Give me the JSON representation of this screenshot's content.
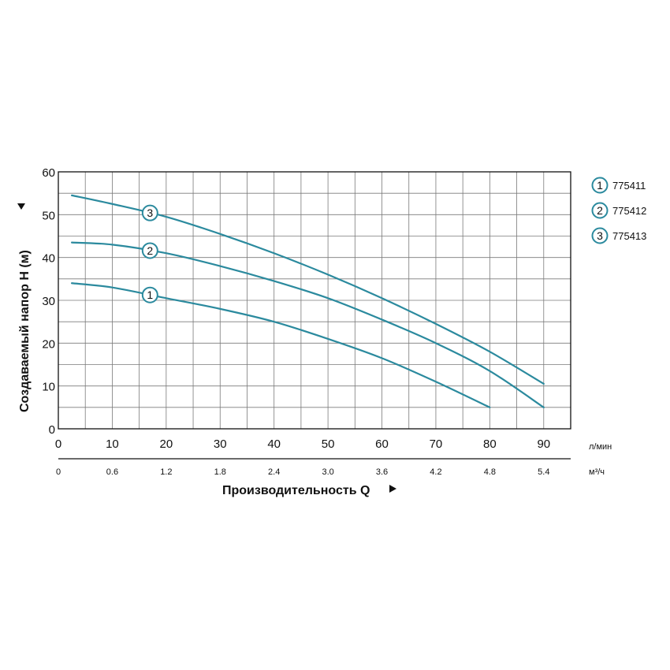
{
  "chart_data": {
    "type": "line",
    "xlabel": "Производительность Q",
    "ylabel": "Создаваемый напор H (м)",
    "x_unit": "л/мин",
    "x2_unit": "м³/ч",
    "xlim": [
      0,
      95
    ],
    "ylim": [
      0,
      60
    ],
    "x_ticks": [
      "0",
      "10",
      "20",
      "30",
      "40",
      "50",
      "60",
      "70",
      "80",
      "90"
    ],
    "x2_ticks": [
      "0",
      "0.6",
      "1.2",
      "1.8",
      "2.4",
      "3.0",
      "3.6",
      "4.2",
      "4.8",
      "5.4"
    ],
    "y_ticks": [
      "0",
      "10",
      "20",
      "30",
      "40",
      "50",
      "60"
    ],
    "grid": true,
    "legend_position": "right",
    "colors": {
      "curve": "#2b8a9e",
      "grid": "#7a7a7a",
      "axis": "#111111"
    },
    "series": [
      {
        "name": "775411",
        "marker": "1",
        "marker_x": 17,
        "x": [
          2.5,
          10,
          20,
          30,
          40,
          50,
          60,
          70,
          80
        ],
        "y": [
          34,
          33,
          30.5,
          28,
          25,
          21,
          16.5,
          11,
          5
        ]
      },
      {
        "name": "775412",
        "marker": "2",
        "marker_x": 17,
        "x": [
          2.5,
          10,
          20,
          30,
          40,
          50,
          60,
          70,
          80,
          90
        ],
        "y": [
          43.5,
          43,
          41,
          38,
          34.5,
          30.5,
          25.5,
          20,
          13.5,
          5
        ]
      },
      {
        "name": "775413",
        "marker": "3",
        "marker_x": 17,
        "x": [
          2.5,
          10,
          20,
          30,
          40,
          50,
          60,
          70,
          80,
          90
        ],
        "y": [
          54.5,
          52.5,
          49.5,
          45.5,
          41,
          36,
          30.5,
          24.5,
          18,
          10.5
        ]
      }
    ]
  }
}
